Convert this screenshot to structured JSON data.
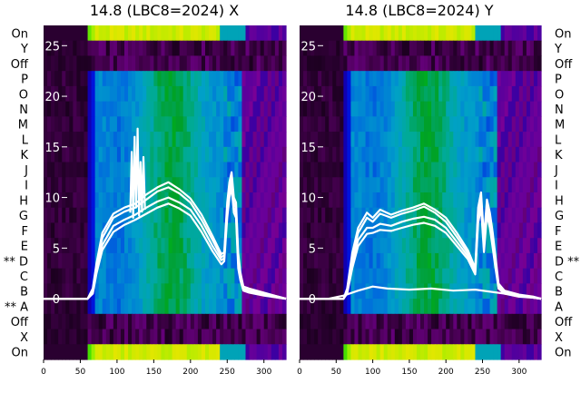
{
  "chart_data": [
    {
      "type": "heatmap",
      "title": "14.8 (LBC8=2024) X",
      "xlabel": "",
      "ylabel": "",
      "xlim": [
        0,
        330
      ],
      "ylim": [
        -6,
        27
      ],
      "x_ticks": [
        0,
        50,
        100,
        150,
        200,
        250,
        300
      ],
      "y_ticks": [
        0,
        5,
        10,
        15,
        20,
        25
      ],
      "row_labels": [
        "On",
        "Y",
        "Off",
        "P",
        "O",
        "N",
        "M",
        "L",
        "K",
        "J",
        "I",
        "H",
        "G",
        "F",
        "E",
        "** D",
        "C",
        "B",
        "** A",
        "Off",
        "X",
        "On"
      ],
      "row_label_side": "left",
      "colormap": "nipy_spectral",
      "series": [
        {
          "x": [
            0,
            60,
            67,
            72,
            80,
            95,
            110,
            125,
            140,
            155,
            170,
            185,
            200,
            215,
            230,
            242,
            246,
            250,
            253,
            256,
            259,
            262,
            265,
            268,
            272,
            280,
            300,
            320,
            330
          ],
          "y": [
            0,
            0,
            1.0,
            3.5,
            6.5,
            8.4,
            9.0,
            9.4,
            10.3,
            11.0,
            11.5,
            10.8,
            9.9,
            8.3,
            6.2,
            4.4,
            4.6,
            9.5,
            11.5,
            12.5,
            10.0,
            9.5,
            4.5,
            2.6,
            1.2,
            1.0,
            0.6,
            0.2,
            0
          ]
        },
        {
          "x": [
            0,
            60,
            67,
            72,
            80,
            95,
            110,
            125,
            140,
            155,
            170,
            185,
            200,
            215,
            230,
            242,
            246,
            250,
            253,
            256,
            259,
            262,
            265,
            268,
            272,
            280,
            300,
            320,
            330
          ],
          "y": [
            0,
            0,
            0.8,
            3.2,
            6.0,
            8.0,
            8.6,
            9.0,
            9.8,
            10.6,
            11.0,
            10.4,
            9.5,
            7.8,
            5.8,
            4.1,
            4.3,
            9.0,
            11.0,
            12.0,
            9.5,
            9.0,
            4.0,
            2.3,
            1.0,
            0.8,
            0.5,
            0.2,
            0
          ]
        },
        {
          "x": [
            0,
            60,
            67,
            72,
            80,
            95,
            110,
            125,
            140,
            155,
            170,
            185,
            200,
            215,
            230,
            242,
            246,
            250,
            253,
            256,
            259,
            262,
            265,
            268,
            272,
            280,
            300,
            320,
            330
          ],
          "y": [
            0,
            0,
            0.6,
            2.8,
            5.3,
            7.2,
            7.8,
            8.3,
            9.0,
            9.6,
            10.0,
            9.5,
            8.8,
            7.2,
            5.2,
            3.8,
            4.0,
            8.5,
            10.4,
            11.5,
            9.0,
            8.5,
            3.5,
            2.0,
            0.9,
            0.7,
            0.4,
            0.1,
            0
          ]
        },
        {
          "x": [
            0,
            60,
            67,
            72,
            80,
            95,
            110,
            125,
            140,
            155,
            170,
            185,
            200,
            215,
            230,
            242,
            246,
            250,
            253,
            256,
            259,
            262,
            265,
            268,
            272,
            280,
            300,
            320,
            330
          ],
          "y": [
            0,
            0,
            0.5,
            2.5,
            4.8,
            6.6,
            7.3,
            7.8,
            8.4,
            9.0,
            9.4,
            8.9,
            8.2,
            6.6,
            4.7,
            3.4,
            3.7,
            8.0,
            10.0,
            11.0,
            8.5,
            8.0,
            3.0,
            1.8,
            0.8,
            0.6,
            0.3,
            0.1,
            0
          ]
        },
        {
          "x": [
            118,
            120,
            122,
            124,
            126,
            128,
            130,
            132,
            134,
            136,
            138
          ],
          "y": [
            8.5,
            14.5,
            8.0,
            16.0,
            9.0,
            16.8,
            8.2,
            13.5,
            8.6,
            14.0,
            8.8
          ]
        }
      ]
    },
    {
      "type": "heatmap",
      "title": "14.8 (LBC8=2024) Y",
      "xlabel": "",
      "ylabel": "",
      "xlim": [
        0,
        330
      ],
      "ylim": [
        -6,
        27
      ],
      "x_ticks": [
        0,
        50,
        100,
        150,
        200,
        250,
        300
      ],
      "y_ticks": [
        0,
        5,
        10,
        15,
        20,
        25
      ],
      "row_labels": [
        "On",
        "Y",
        "Off",
        "P",
        "O",
        "N",
        "M",
        "L",
        "K",
        "J",
        "I",
        "H",
        "G",
        "F",
        "E",
        "D **",
        "C",
        "B",
        "A",
        "Off",
        "X",
        "On"
      ],
      "row_label_side": "right",
      "colormap": "nipy_spectral",
      "series": [
        {
          "x": [
            0,
            60,
            65,
            72,
            80,
            92,
            100,
            110,
            125,
            140,
            155,
            170,
            185,
            200,
            215,
            230,
            240,
            244,
            248,
            252,
            256,
            260,
            264,
            268,
            272,
            280,
            300,
            320,
            330
          ],
          "y": [
            0,
            0,
            1.0,
            4.5,
            7.0,
            8.5,
            8.0,
            8.8,
            8.3,
            8.7,
            9.0,
            9.4,
            8.8,
            8.0,
            6.5,
            4.8,
            3.0,
            9.0,
            10.5,
            6.0,
            9.8,
            8.5,
            6.5,
            4.0,
            1.5,
            0.8,
            0.4,
            0.2,
            0
          ]
        },
        {
          "x": [
            0,
            60,
            65,
            72,
            80,
            92,
            100,
            110,
            125,
            140,
            155,
            170,
            185,
            200,
            215,
            230,
            240,
            244,
            248,
            252,
            256,
            260,
            264,
            268,
            272,
            280,
            300,
            320,
            330
          ],
          "y": [
            0,
            0,
            0.8,
            4.0,
            6.5,
            8.0,
            7.6,
            8.4,
            8.0,
            8.4,
            8.7,
            9.1,
            8.5,
            7.6,
            6.1,
            4.5,
            2.8,
            8.6,
            10.0,
            5.6,
            9.3,
            8.0,
            6.0,
            3.6,
            1.3,
            0.7,
            0.3,
            0.1,
            0
          ]
        },
        {
          "x": [
            0,
            60,
            65,
            72,
            80,
            92,
            100,
            110,
            125,
            140,
            155,
            170,
            185,
            200,
            215,
            230,
            240,
            244,
            248,
            252,
            256,
            260,
            264,
            268,
            272,
            280,
            300,
            320,
            330
          ],
          "y": [
            0,
            0,
            0.6,
            3.5,
            5.8,
            7.0,
            7.0,
            7.4,
            7.2,
            7.6,
            7.9,
            8.1,
            7.8,
            7.0,
            5.6,
            4.2,
            2.6,
            8.0,
            9.4,
            5.0,
            8.8,
            7.5,
            5.5,
            3.2,
            1.1,
            0.6,
            0.3,
            0.1,
            0
          ]
        },
        {
          "x": [
            0,
            60,
            65,
            72,
            80,
            92,
            100,
            110,
            125,
            140,
            155,
            170,
            185,
            200,
            215,
            230,
            240,
            244,
            248,
            252,
            256,
            260,
            264,
            268,
            272,
            280,
            300,
            320,
            330
          ],
          "y": [
            0,
            0,
            0.5,
            3.0,
            5.2,
            6.4,
            6.5,
            6.8,
            6.7,
            7.0,
            7.3,
            7.5,
            7.2,
            6.5,
            5.2,
            3.9,
            2.4,
            7.5,
            9.0,
            4.6,
            8.3,
            7.0,
            5.0,
            2.9,
            1.0,
            0.5,
            0.2,
            0.1,
            0
          ]
        },
        {
          "x": [
            0,
            40,
            60,
            80,
            100,
            120,
            150,
            180,
            210,
            240,
            270,
            300,
            330
          ],
          "y": [
            0,
            0,
            0.3,
            0.8,
            1.2,
            1.0,
            0.9,
            1.0,
            0.8,
            0.9,
            0.6,
            0.3,
            0
          ]
        }
      ]
    }
  ]
}
